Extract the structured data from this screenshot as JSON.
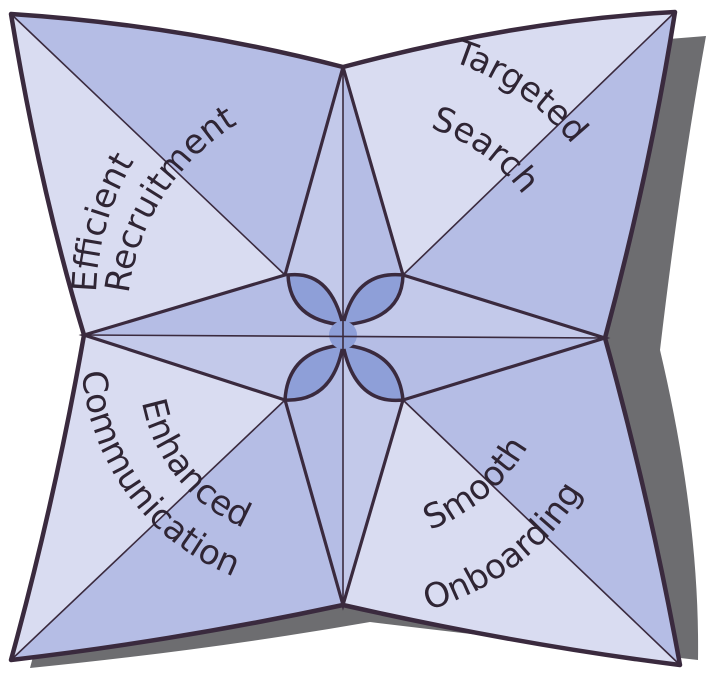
{
  "diagram": {
    "top_left": {
      "lines": [
        "Efficient",
        "Recruitment"
      ]
    },
    "top_right": {
      "lines": [
        "Targeted",
        "Search"
      ]
    },
    "bottom_left": {
      "lines": [
        "Enhanced",
        "Communication"
      ]
    },
    "bottom_right": {
      "lines": [
        "Smooth",
        "Onboarding"
      ]
    }
  },
  "colors": {
    "light": "#d9dcf1",
    "mid": "#b5bde5",
    "center": "#8e9fd8",
    "outline": "#3a2a3e",
    "shadow": "#6d6d70"
  }
}
